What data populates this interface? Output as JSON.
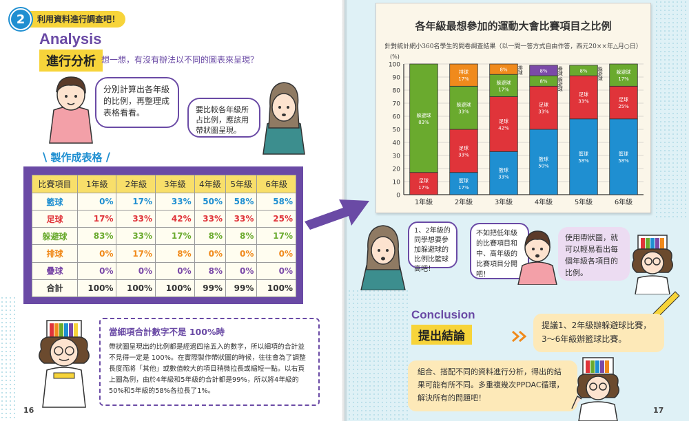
{
  "header": {
    "step_number": "2",
    "step_title": "利用資料進行調查吧！"
  },
  "analysis": {
    "word": "Analysis",
    "section_label": "進行分析",
    "question": "想一想，有沒有辦法以不同的圖表來呈現？"
  },
  "bubbles": {
    "boy_left": "分別計算出各年級的比例，再整理成表格看看。",
    "girl_left": "要比較各年級所占比例，應該用帶狀圖呈現。",
    "girl_right": "1、2年級的同學想要參加躲避球的比例比籃球高吧！",
    "boy_right": "不如把低年級的比賽項目和中、高年級的比賽項目分開吧！",
    "teacher_right": "使用帶狀圖，就可以輕易看出每個年級各項目的比例。"
  },
  "table": {
    "title": "製作成表格",
    "headers": [
      "比賽項目",
      "1年級",
      "2年級",
      "3年級",
      "4年級",
      "5年級",
      "6年級"
    ],
    "rows": [
      {
        "label": "籃球",
        "color": "#1f8fd1",
        "values": [
          "0%",
          "17%",
          "33%",
          "50%",
          "58%",
          "58%"
        ]
      },
      {
        "label": "足球",
        "color": "#e0343a",
        "values": [
          "17%",
          "33%",
          "42%",
          "33%",
          "33%",
          "25%"
        ]
      },
      {
        "label": "躲避球",
        "color": "#6aaa2e",
        "values": [
          "83%",
          "33%",
          "17%",
          "8%",
          "8%",
          "17%"
        ]
      },
      {
        "label": "排球",
        "color": "#f08a1c",
        "values": [
          "0%",
          "17%",
          "8%",
          "0%",
          "0%",
          "0%"
        ]
      },
      {
        "label": "疊球",
        "color": "#7b4aa8",
        "values": [
          "0%",
          "0%",
          "0%",
          "8%",
          "0%",
          "0%"
        ]
      },
      {
        "label": "合計",
        "color": "#333333",
        "values": [
          "100%",
          "100%",
          "100%",
          "99%",
          "99%",
          "100%"
        ]
      }
    ]
  },
  "note": {
    "title": "當細項合計數字不是 100%時",
    "body": "帶狀圖呈現出的比例都是經過四捨五入的數字，所以細項的合計並不見得一定是 100%。在實際製作帶狀圖的時候，往往會為了調整長度而將「其他」或數值較大的項目稍微拉長或縮短一點。以右頁上圖為例，由於4年級和5年級的合計都是99%，所以將4年級的50%和5年級的58%各拉長了1%。"
  },
  "page_numbers": {
    "left": "16",
    "right": "17"
  },
  "chart_data": {
    "type": "bar",
    "stacked": true,
    "percent_axis": true,
    "title": "各年級最想參加的運動大會比賽項目之比例",
    "subtitle": "針對統計網小360名學生的問卷調查結果（以一問一答方式自由作答，西元20××年△月○日）",
    "ylabel": "(%)",
    "ylim": [
      0,
      100
    ],
    "yticks": [
      0,
      10,
      20,
      30,
      40,
      50,
      60,
      70,
      80,
      90,
      100
    ],
    "categories": [
      "1年級",
      "2年級",
      "3年級",
      "4年級",
      "5年級",
      "6年級"
    ],
    "series": [
      {
        "name": "籃球",
        "color": "#1f8fd1",
        "values": [
          0,
          17,
          33,
          50,
          58,
          58
        ],
        "labels": [
          "",
          "17%",
          "33%",
          "50%",
          "58%",
          "58%"
        ]
      },
      {
        "name": "足球",
        "color": "#e0343a",
        "values": [
          17,
          33,
          42,
          33,
          33,
          25
        ],
        "labels": [
          "17%",
          "33%",
          "42%",
          "33%",
          "33%",
          "25%"
        ]
      },
      {
        "name": "躲避球",
        "color": "#6aaa2e",
        "values": [
          83,
          33,
          17,
          8,
          8,
          17
        ],
        "labels": [
          "83%",
          "33%",
          "17%",
          "8%",
          "8%",
          "17%"
        ]
      },
      {
        "name": "排球",
        "color": "#f08a1c",
        "values": [
          0,
          17,
          8,
          0,
          0,
          0
        ],
        "labels": [
          "",
          "17%",
          "8%",
          "",
          "",
          ""
        ]
      },
      {
        "name": "疊球",
        "color": "#7b4aa8",
        "values": [
          0,
          0,
          0,
          8,
          0,
          0
        ],
        "labels": [
          "",
          "",
          "",
          "8%",
          "",
          ""
        ]
      }
    ],
    "side_labels": [
      {
        "category": "3年級",
        "series": "排球",
        "text": "排球"
      },
      {
        "category": "4年級",
        "series": "疊球",
        "text": "疊球"
      },
      {
        "category": "4年級",
        "series": "躲避球",
        "text": "躲避球"
      },
      {
        "category": "5年級",
        "series": "躲避球",
        "text": "躲避球"
      }
    ],
    "grid": true,
    "legend": "none"
  },
  "conclusion": {
    "word": "Conclusion",
    "section_label": "提出結論",
    "statement": "提議1、2年級辦躲避球比賽，3～6年級辦籃球比賽。",
    "combine": "組合、搭配不同的資料進行分析，得出的結果可能有所不同。多重複幾次PPDAC循環，解決所有的問題吧！"
  }
}
